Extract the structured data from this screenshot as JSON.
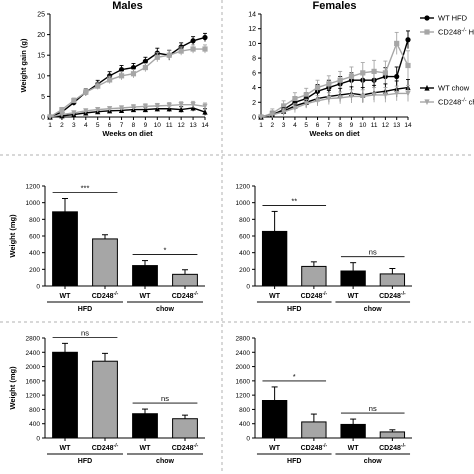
{
  "figure": {
    "legend_top": {
      "items": [
        {
          "label": "WT HFD",
          "color": "#000000",
          "marker": "circle"
        },
        {
          "label": "CD248-/- HFD",
          "color": "#a6a6a6",
          "marker": "square"
        }
      ]
    },
    "legend_bottom": {
      "items": [
        {
          "label": "WT chow",
          "color": "#000000",
          "marker": "triangle"
        },
        {
          "label": "CD248-/- chow",
          "color": "#a6a6a6",
          "marker": "triangle-down"
        }
      ]
    }
  },
  "chart_data": [
    {
      "type": "line",
      "title": "Males",
      "xlabel": "Weeks on diet",
      "ylabel": "Weight gain (g)",
      "x": [
        1,
        2,
        3,
        4,
        5,
        6,
        7,
        8,
        9,
        10,
        11,
        12,
        13,
        14
      ],
      "xlim": [
        1,
        14
      ],
      "ylim": [
        0,
        25
      ],
      "yticks": [
        0,
        5,
        10,
        15,
        20,
        25
      ],
      "series": [
        {
          "name": "WT HFD",
          "color": "#000000",
          "marker": "circle",
          "values": [
            0,
            1.2,
            3.5,
            6,
            8,
            10,
            11.5,
            12,
            13.5,
            15.5,
            15,
            17,
            18.5,
            19.3
          ],
          "errors": [
            0,
            0.5,
            0.7,
            0.8,
            0.9,
            1,
            1,
            1,
            1,
            1.2,
            1.2,
            1,
            1,
            1
          ]
        },
        {
          "name": "CD248-/- HFD",
          "color": "#a6a6a6",
          "marker": "square",
          "values": [
            0,
            1.8,
            4,
            6,
            7.5,
            9,
            10,
            10.5,
            12,
            14.5,
            15,
            16,
            16.5,
            16.5
          ],
          "errors": [
            0,
            0.5,
            0.6,
            0.7,
            0.8,
            0.9,
            1,
            1,
            1,
            1.1,
            1.1,
            1,
            1,
            1
          ]
        },
        {
          "name": "WT chow",
          "color": "#000000",
          "marker": "triangle",
          "values": [
            0,
            0.3,
            0.6,
            1,
            1.3,
            1.5,
            1.6,
            1.8,
            1.8,
            2,
            2,
            1.8,
            2.2,
            1.2
          ],
          "errors": [
            0,
            0.3,
            0.3,
            0.4,
            0.4,
            0.5,
            0.5,
            0.5,
            0.6,
            0.6,
            0.7,
            0.7,
            0.8,
            0.8
          ]
        },
        {
          "name": "CD248-/- chow",
          "color": "#a6a6a6",
          "marker": "triangle-down",
          "values": [
            0,
            0.6,
            1,
            1.5,
            1.8,
            2,
            2.2,
            2.4,
            2.6,
            2.7,
            2.8,
            3,
            3,
            2.6
          ],
          "errors": [
            0,
            0.3,
            0.4,
            0.4,
            0.5,
            0.5,
            0.5,
            0.6,
            0.6,
            0.6,
            0.7,
            0.7,
            0.8,
            0.8
          ]
        }
      ]
    },
    {
      "type": "line",
      "title": "Females",
      "xlabel": "Weeks on diet",
      "ylabel": "",
      "x": [
        1,
        2,
        3,
        4,
        5,
        6,
        7,
        8,
        9,
        10,
        11,
        12,
        13,
        14
      ],
      "xlim": [
        1,
        14
      ],
      "ylim": [
        0,
        14
      ],
      "yticks": [
        0,
        2,
        4,
        6,
        8,
        10,
        12,
        14
      ],
      "series": [
        {
          "name": "WT HFD",
          "color": "#000000",
          "marker": "circle",
          "values": [
            0,
            0.3,
            1,
            2,
            2.5,
            3.5,
            4,
            4.5,
            5,
            5,
            5,
            5.5,
            5.5,
            10.5
          ],
          "errors": [
            0,
            0.5,
            0.6,
            0.7,
            0.8,
            0.9,
            1,
            1,
            1,
            1.1,
            1.2,
            1.2,
            1.3,
            1.2
          ]
        },
        {
          "name": "CD248-/- HFD",
          "color": "#a6a6a6",
          "marker": "square",
          "values": [
            0,
            0.5,
            1.5,
            2.5,
            3,
            4,
            4.5,
            5,
            5.5,
            6,
            6.2,
            6,
            10,
            7
          ],
          "errors": [
            0,
            0.6,
            0.7,
            0.8,
            0.9,
            1,
            1.1,
            1.2,
            1.3,
            1.4,
            1.5,
            1.6,
            1.5,
            2
          ]
        },
        {
          "name": "WT chow",
          "color": "#000000",
          "marker": "triangle",
          "values": [
            0,
            0.3,
            0.8,
            1.5,
            2,
            2.5,
            2.8,
            3,
            3.2,
            3,
            3.3,
            3.5,
            3.8,
            4
          ],
          "errors": [
            0,
            0.4,
            0.5,
            0.6,
            0.7,
            0.8,
            0.8,
            0.9,
            0.9,
            1,
            1,
            1,
            1.1,
            1.1
          ]
        },
        {
          "name": "CD248-/- chow",
          "color": "#a6a6a6",
          "marker": "triangle-down",
          "values": [
            0,
            0.3,
            0.7,
            1.2,
            1.8,
            2.2,
            2.5,
            2.6,
            2.8,
            2.8,
            3,
            3,
            3.2,
            3.2
          ],
          "errors": [
            0,
            0.4,
            0.5,
            0.6,
            0.6,
            0.7,
            0.8,
            0.8,
            0.9,
            0.9,
            1,
            1,
            1,
            1.1
          ]
        }
      ]
    },
    {
      "type": "bar",
      "title": "",
      "ylabel": "Weight (mg)",
      "categories": [
        "WT",
        "CD248-/-",
        "WT",
        "CD248-/-"
      ],
      "groups": [
        {
          "label": "HFD",
          "from": 0,
          "to": 1
        },
        {
          "label": "chow",
          "from": 2,
          "to": 3
        }
      ],
      "values": [
        890,
        565,
        245,
        140
      ],
      "errors": [
        160,
        50,
        60,
        55
      ],
      "colors": [
        "#000000",
        "#a6a6a6",
        "#000000",
        "#a6a6a6"
      ],
      "ylim": [
        0,
        1200
      ],
      "yticks": [
        0,
        200,
        400,
        600,
        800,
        1000,
        1200
      ],
      "significance": [
        {
          "from": 0,
          "to": 1,
          "label": "***"
        },
        {
          "from": 2,
          "to": 3,
          "label": "*"
        }
      ]
    },
    {
      "type": "bar",
      "title": "",
      "ylabel": "",
      "categories": [
        "WT",
        "CD248-/-",
        "WT",
        "CD248-/-"
      ],
      "groups": [
        {
          "label": "HFD",
          "from": 0,
          "to": 1
        },
        {
          "label": "chow",
          "from": 2,
          "to": 3
        }
      ],
      "values": [
        655,
        235,
        180,
        145
      ],
      "errors": [
        240,
        55,
        100,
        65
      ],
      "colors": [
        "#000000",
        "#a6a6a6",
        "#000000",
        "#a6a6a6"
      ],
      "ylim": [
        0,
        1200
      ],
      "yticks": [
        0,
        200,
        400,
        600,
        800,
        1000,
        1200
      ],
      "significance": [
        {
          "from": 0,
          "to": 1,
          "label": "**"
        },
        {
          "from": 2,
          "to": 3,
          "label": "ns"
        }
      ]
    },
    {
      "type": "bar",
      "title": "",
      "ylabel": "Weight (mg)",
      "categories": [
        "WT",
        "CD248-/-",
        "WT",
        "CD248-/-"
      ],
      "groups": [
        {
          "label": "HFD",
          "from": 0,
          "to": 1
        },
        {
          "label": "chow",
          "from": 2,
          "to": 3
        }
      ],
      "values": [
        2400,
        2150,
        680,
        540
      ],
      "errors": [
        250,
        220,
        130,
        100
      ],
      "colors": [
        "#000000",
        "#a6a6a6",
        "#000000",
        "#a6a6a6"
      ],
      "ylim": [
        0,
        2800
      ],
      "yticks": [
        0,
        400,
        800,
        1200,
        1600,
        2000,
        2400,
        2800
      ],
      "significance": [
        {
          "from": 0,
          "to": 1,
          "label": "ns"
        },
        {
          "from": 2,
          "to": 3,
          "label": "ns"
        }
      ]
    },
    {
      "type": "bar",
      "title": "",
      "ylabel": "",
      "categories": [
        "WT",
        "CD248-/-",
        "WT",
        "CD248-/-"
      ],
      "groups": [
        {
          "label": "HFD",
          "from": 0,
          "to": 1
        },
        {
          "label": "chow",
          "from": 2,
          "to": 3
        }
      ],
      "values": [
        1050,
        450,
        380,
        170
      ],
      "errors": [
        380,
        220,
        150,
        60
      ],
      "colors": [
        "#000000",
        "#a6a6a6",
        "#000000",
        "#a6a6a6"
      ],
      "ylim": [
        0,
        2800
      ],
      "yticks": [
        0,
        400,
        800,
        1200,
        1600,
        2000,
        2400,
        2800
      ],
      "significance": [
        {
          "from": 0,
          "to": 1,
          "label": "*"
        },
        {
          "from": 2,
          "to": 3,
          "label": "ns"
        }
      ]
    }
  ]
}
